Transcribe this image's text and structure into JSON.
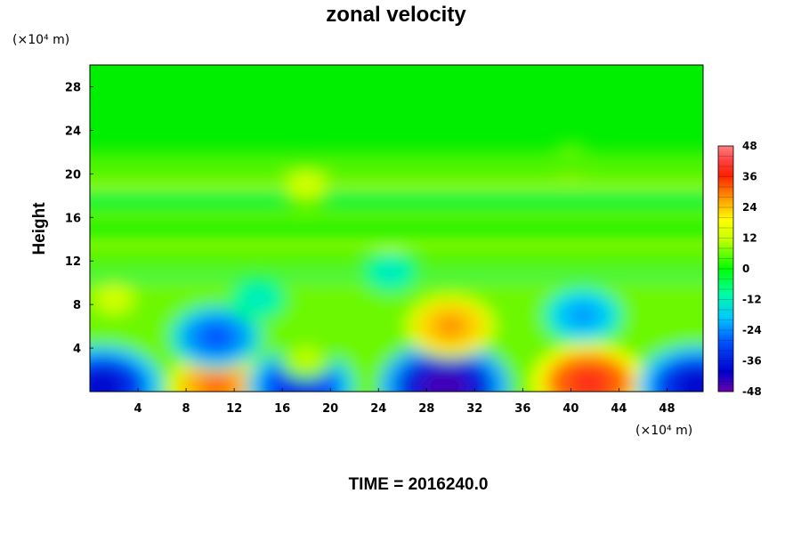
{
  "chart_data": {
    "type": "heatmap",
    "title": "zonal velocity",
    "xlabel": "",
    "ylabel": "Height",
    "x_unit": "(×10⁴ m)",
    "y_unit": "(×10⁴ m)",
    "footer": "TIME = 2016240.0",
    "xlim": [
      0,
      51
    ],
    "ylim": [
      0,
      30
    ],
    "x_ticks": [
      4,
      8,
      12,
      16,
      20,
      24,
      28,
      32,
      36,
      40,
      44,
      48
    ],
    "y_ticks": [
      4,
      8,
      12,
      16,
      20,
      24,
      28
    ],
    "colorbar": {
      "min": -48,
      "max": 48,
      "ticks": [
        48,
        36,
        24,
        12,
        0,
        -12,
        -24,
        -36,
        -48
      ]
    },
    "features": [
      {
        "x": 1,
        "y": 0.5,
        "value": -40
      },
      {
        "x": 10.5,
        "y": 0.5,
        "value": 30
      },
      {
        "x": 17.5,
        "y": 0.5,
        "value": -35
      },
      {
        "x": 29.5,
        "y": 0.5,
        "value": -45
      },
      {
        "x": 41.5,
        "y": 0.8,
        "value": 38
      },
      {
        "x": 50.5,
        "y": 0.5,
        "value": -40
      },
      {
        "x": 10.5,
        "y": 5,
        "value": -28
      },
      {
        "x": 30,
        "y": 6,
        "value": 27
      },
      {
        "x": 41,
        "y": 7,
        "value": -22
      },
      {
        "x": 2,
        "y": 8.5,
        "value": 12
      },
      {
        "x": 18,
        "y": 3,
        "value": 10
      },
      {
        "x": 14,
        "y": 8.5,
        "value": -12
      },
      {
        "x": 18,
        "y": 19,
        "value": 12
      },
      {
        "x": 40,
        "y": 21.5,
        "value": 5
      },
      {
        "x": 25,
        "y": 11,
        "value": -12
      }
    ]
  }
}
